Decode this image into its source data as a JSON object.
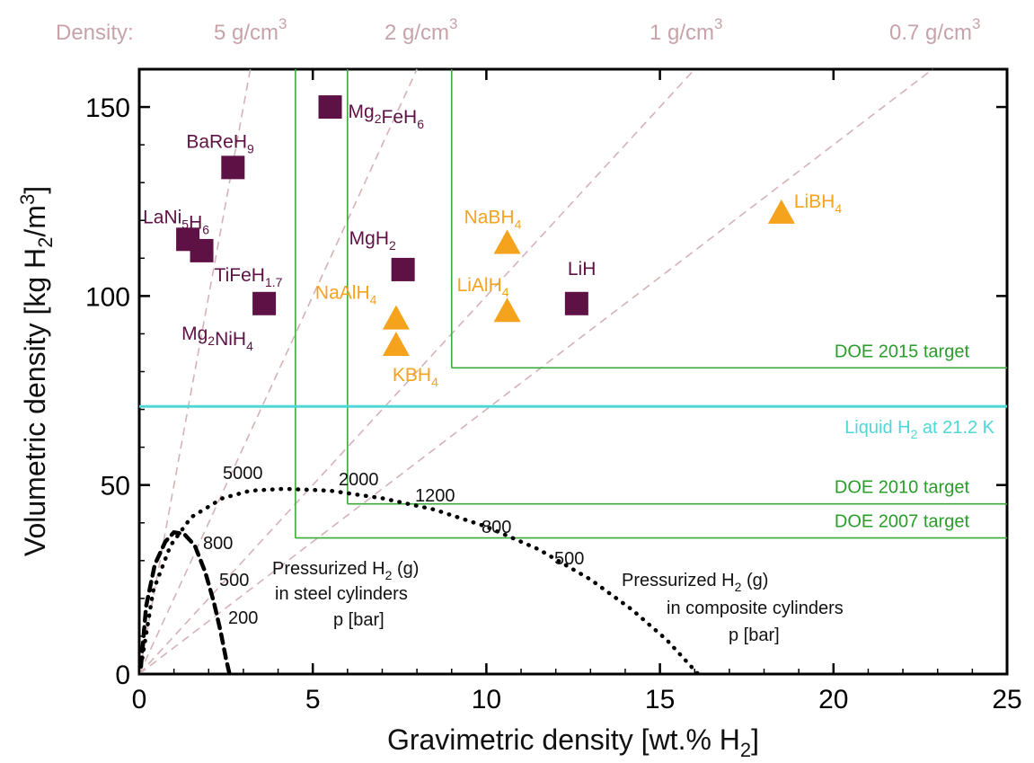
{
  "chart_data": {
    "type": "scatter",
    "xlabel": "Gravimetric density [wt.% H",
    "xlabel_sub": "2",
    "xlabel_end": "]",
    "ylabel": "Volumetric density [kg H",
    "ylabel_sub": "2",
    "ylabel_mid": "/m",
    "ylabel_sup": "3",
    "ylabel_end": "]",
    "xlim": [
      0,
      25
    ],
    "ylim": [
      0,
      160
    ],
    "x_ticks": [
      0,
      5,
      10,
      15,
      20,
      25
    ],
    "y_ticks": [
      0,
      50,
      100,
      150
    ],
    "grid": false,
    "density_header": "Density:",
    "density_lines": [
      {
        "label": "5 g/cm",
        "sup": "3",
        "slope": 50,
        "x_end": 3.2
      },
      {
        "label": "2 g/cm",
        "sup": "3",
        "slope": 20,
        "x_end": 8.0
      },
      {
        "label": "1 g/cm",
        "sup": "3",
        "slope": 10,
        "x_end": 16.0
      },
      {
        "label": "0.7 g/cm",
        "sup": "3",
        "slope": 7,
        "x_end": 22.86
      }
    ],
    "metal_hydrides": {
      "color": "#5e1144",
      "points": [
        {
          "x": 5.5,
          "y": 150,
          "name": "Mg",
          "sub1": "2",
          "mid": "FeH",
          "sub2": "6"
        },
        {
          "x": 2.7,
          "y": 134,
          "name": "BaReH",
          "sub1": "9",
          "mid": "",
          "sub2": ""
        },
        {
          "x": 1.4,
          "y": 115,
          "name": "LaNi",
          "sub1": "5",
          "mid": "H",
          "sub2": "6"
        },
        {
          "x": 1.8,
          "y": 112,
          "name": "TiFeH",
          "sub1": "1.7",
          "mid": "",
          "sub2": ""
        },
        {
          "x": 3.6,
          "y": 98,
          "name": "Mg",
          "sub1": "2",
          "mid": "NiH",
          "sub2": "4"
        },
        {
          "x": 7.6,
          "y": 107,
          "name": "MgH",
          "sub1": "2",
          "mid": "",
          "sub2": ""
        },
        {
          "x": 12.6,
          "y": 98,
          "name": "LiH",
          "sub1": "",
          "mid": "",
          "sub2": ""
        }
      ]
    },
    "complex_hydrides": {
      "color": "#f5a21d",
      "points": [
        {
          "x": 18.5,
          "y": 122,
          "name": "LiBH",
          "sub1": "4"
        },
        {
          "x": 10.6,
          "y": 114,
          "name": "NaBH",
          "sub1": "4"
        },
        {
          "x": 10.6,
          "y": 96,
          "name": "LiAlH",
          "sub1": "4"
        },
        {
          "x": 7.4,
          "y": 94,
          "name": "NaAlH",
          "sub1": "4"
        },
        {
          "x": 7.4,
          "y": 87,
          "name": "KBH",
          "sub1": "4"
        }
      ]
    },
    "targets": [
      {
        "label": "DOE 2015 target",
        "x": 9.0,
        "y": 81
      },
      {
        "label": "DOE 2010 target",
        "x": 6.0,
        "y": 45
      },
      {
        "label": "DOE 2007 target",
        "x": 4.5,
        "y": 36
      }
    ],
    "liquid_h2": {
      "y": 70.8,
      "label_pre": "Liquid H",
      "label_sub": "2",
      "label_post": " at 21.2 K",
      "color": "#4fd6d6"
    },
    "steel_cylinders": {
      "curve": [
        [
          0.05,
          2
        ],
        [
          0.2,
          18
        ],
        [
          0.45,
          29
        ],
        [
          0.75,
          35
        ],
        [
          1.0,
          37.5
        ],
        [
          1.3,
          37
        ],
        [
          1.6,
          34
        ],
        [
          1.9,
          27
        ],
        [
          2.15,
          19
        ],
        [
          2.35,
          11
        ],
        [
          2.5,
          4
        ],
        [
          2.6,
          0
        ]
      ],
      "pressure_labels": [
        "800",
        "500",
        "200"
      ],
      "text1_pre": "Pressurized H",
      "text1_sub": "2",
      "text1_post": " (g)",
      "text2": "in steel cylinders",
      "text3": "p [bar]"
    },
    "composite_cylinders": {
      "curve": [
        [
          0.05,
          2
        ],
        [
          0.4,
          22
        ],
        [
          0.9,
          34
        ],
        [
          1.5,
          41.5
        ],
        [
          2.4,
          46.5
        ],
        [
          3.2,
          48.5
        ],
        [
          4.2,
          49
        ],
        [
          5.5,
          48.5
        ],
        [
          7.0,
          46.5
        ],
        [
          8.5,
          43.5
        ],
        [
          10.0,
          39
        ],
        [
          11.5,
          33
        ],
        [
          13.0,
          25
        ],
        [
          14.2,
          17
        ],
        [
          15.2,
          9
        ],
        [
          15.8,
          3
        ],
        [
          16.1,
          0
        ]
      ],
      "pressure_labels": [
        "5000",
        "2000",
        "1200",
        "800",
        "500"
      ],
      "text1_pre": "Pressurized H",
      "text1_sub": "2",
      "text1_post": " (g)",
      "text2": "in composite cylinders",
      "text3": "p [bar]"
    }
  }
}
